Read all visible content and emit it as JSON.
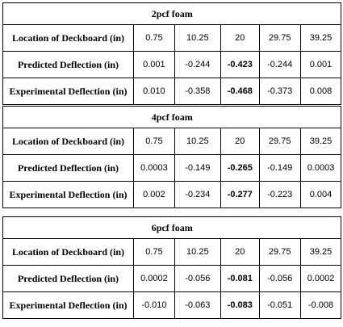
{
  "tables": [
    {
      "title": "2pcf foam",
      "location_label": "Location of Deckboard (in)",
      "locations": [
        "0.75",
        "10.25",
        "20",
        "29.75",
        "39.25"
      ],
      "predicted_label": "Predicted Deflection (in)",
      "predicted": [
        "0.001",
        "-0.244",
        "-0.423",
        "-0.244",
        "0.001"
      ],
      "experimental_label": "Experimental Deflection (in)",
      "experimental": [
        "0.010",
        "-0.358",
        "-0.468",
        "-0.373",
        "0.008"
      ]
    },
    {
      "title": "4pcf foam",
      "location_label": "Location of Deckboard (in)",
      "locations": [
        "0.75",
        "10.25",
        "20",
        "29.75",
        "39.25"
      ],
      "predicted_label": "Predicted Deflection (in)",
      "predicted": [
        "0.0003",
        "-0.149",
        "-0.265",
        "-0.149",
        "0.0003"
      ],
      "experimental_label": "Experimental Deflection (in)",
      "experimental": [
        "0.002",
        "-0.234",
        "-0.277",
        "-0.223",
        "0.004"
      ]
    },
    {
      "title": "6pcf foam",
      "location_label": "Location of Deckboard (in)",
      "locations": [
        "0.75",
        "10.25",
        "20",
        "29.75",
        "39.25"
      ],
      "predicted_label": "Predicted Deflection (in)",
      "predicted": [
        "0.0002",
        "-0.056",
        "-0.081",
        "-0.056",
        "0.0002"
      ],
      "experimental_label": "Experimental Deflection (in)",
      "experimental": [
        "-0.010",
        "-0.063",
        "-0.083",
        "-0.051",
        "-0.008"
      ]
    }
  ]
}
